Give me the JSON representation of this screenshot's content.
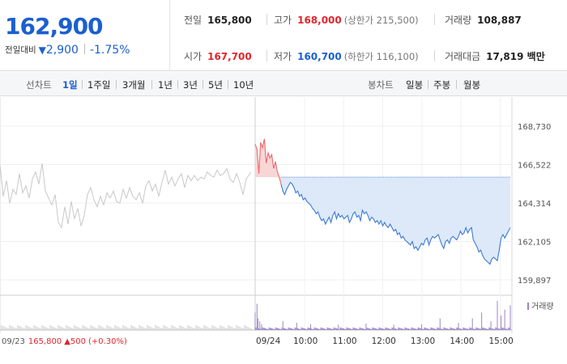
{
  "quote": {
    "price": "162,900",
    "change_label": "전일대비",
    "change_arrow": "▼",
    "change_amount": "2,900",
    "change_pct": "-1.75%",
    "prev_close_label": "전일",
    "prev_close": "165,800",
    "high_label": "고가",
    "high": "168,000",
    "upper_limit": "(상한가 215,500)",
    "volume_label": "거래량",
    "volume": "108,887",
    "open_label": "시가",
    "open": "167,700",
    "low_label": "저가",
    "low": "160,700",
    "lower_limit": "(하한가 116,100)",
    "turnover_label": "거래대금",
    "turnover": "17,819 백만"
  },
  "toolbar": {
    "line_label": "선차트",
    "line_ranges": [
      "1일",
      "1주일",
      "3개월",
      "1년",
      "3년",
      "5년",
      "10년"
    ],
    "active_range": "1일",
    "candle_label": "봉차트",
    "candle_ranges": [
      "일봉",
      "주봉",
      "월봉"
    ]
  },
  "colors": {
    "up": "#e0262c",
    "down": "#1b5fd0",
    "prev_day_line": "#c8c8c8",
    "fill_down": "#dde9f8",
    "fill_up": "#f9d6d6",
    "volume_bar": "#9b86c6"
  },
  "chart_data": {
    "type": "line",
    "y_ticks": [
      "168,730",
      "166,522",
      "164,314",
      "162,105",
      "159,897"
    ],
    "ylim": [
      159897,
      168730
    ],
    "reference_price": 165800,
    "x_labels": [
      "09/24",
      "10:00",
      "11:00",
      "12:00",
      "13:00",
      "14:00",
      "15:00"
    ],
    "volume_legend": "거래량",
    "prev_day_note": {
      "date": "09/23",
      "close": "165,800",
      "arrow": "▲",
      "change": "500",
      "pct": "(+0.30%)"
    },
    "prev_day_series": [
      [
        0,
        166500
      ],
      [
        4,
        164700
      ],
      [
        8,
        165600
      ],
      [
        12,
        164300
      ],
      [
        16,
        165100
      ],
      [
        20,
        164800
      ],
      [
        24,
        166000
      ],
      [
        28,
        164900
      ],
      [
        32,
        165300
      ],
      [
        36,
        164600
      ],
      [
        40,
        165700
      ],
      [
        44,
        166100
      ],
      [
        48,
        165400
      ],
      [
        52,
        166600
      ],
      [
        56,
        165000
      ],
      [
        60,
        164600
      ],
      [
        64,
        164200
      ],
      [
        68,
        164800
      ],
      [
        72,
        163200
      ],
      [
        76,
        162900
      ],
      [
        80,
        164100
      ],
      [
        84,
        163100
      ],
      [
        88,
        164400
      ],
      [
        92,
        163400
      ],
      [
        96,
        164000
      ],
      [
        100,
        163000
      ],
      [
        104,
        163600
      ],
      [
        108,
        164800
      ],
      [
        112,
        165200
      ],
      [
        116,
        164500
      ],
      [
        120,
        164100
      ],
      [
        124,
        164700
      ],
      [
        128,
        164200
      ],
      [
        132,
        164900
      ],
      [
        136,
        164600
      ],
      [
        140,
        165000
      ],
      [
        144,
        164400
      ],
      [
        148,
        164300
      ],
      [
        152,
        165100
      ],
      [
        156,
        164600
      ],
      [
        160,
        165200
      ],
      [
        164,
        164700
      ],
      [
        168,
        164500
      ],
      [
        172,
        164900
      ],
      [
        176,
        164300
      ],
      [
        180,
        165300
      ],
      [
        184,
        165600
      ],
      [
        188,
        165000
      ],
      [
        192,
        165400
      ],
      [
        196,
        164700
      ],
      [
        200,
        165500
      ],
      [
        204,
        166200
      ],
      [
        208,
        165400
      ],
      [
        212,
        165800
      ],
      [
        216,
        165300
      ],
      [
        220,
        165700
      ],
      [
        224,
        166000
      ],
      [
        228,
        165200
      ],
      [
        232,
        165900
      ],
      [
        236,
        165600
      ],
      [
        240,
        165900
      ],
      [
        244,
        165600
      ],
      [
        248,
        165800
      ],
      [
        252,
        165700
      ],
      [
        256,
        166100
      ],
      [
        260,
        165900
      ],
      [
        264,
        165800
      ],
      [
        268,
        166200
      ],
      [
        272,
        165900
      ],
      [
        276,
        166000
      ],
      [
        280,
        166300
      ],
      [
        284,
        165700
      ],
      [
        288,
        165500
      ],
      [
        292,
        166000
      ],
      [
        296,
        165500
      ],
      [
        300,
        164800
      ],
      [
        304,
        165700
      ],
      [
        310,
        166100
      ]
    ],
    "today_series": [
      [
        0,
        167700
      ],
      [
        2,
        167400
      ],
      [
        4,
        166000
      ],
      [
        6,
        167800
      ],
      [
        8,
        167500
      ],
      [
        10,
        168000
      ],
      [
        12,
        166600
      ],
      [
        14,
        167200
      ],
      [
        16,
        166900
      ],
      [
        18,
        167100
      ],
      [
        20,
        166300
      ],
      [
        22,
        166700
      ],
      [
        24,
        166100
      ],
      [
        26,
        165800
      ],
      [
        28,
        165400
      ],
      [
        30,
        165000
      ],
      [
        32,
        164800
      ],
      [
        34,
        165100
      ],
      [
        36,
        165300
      ],
      [
        38,
        165500
      ],
      [
        40,
        165400
      ],
      [
        42,
        165200
      ],
      [
        44,
        164900
      ],
      [
        46,
        165000
      ],
      [
        48,
        164700
      ],
      [
        50,
        164800
      ],
      [
        52,
        164500
      ],
      [
        54,
        164600
      ],
      [
        56,
        164400
      ],
      [
        58,
        164300
      ],
      [
        60,
        164200
      ],
      [
        62,
        164000
      ],
      [
        64,
        163900
      ],
      [
        66,
        163700
      ],
      [
        68,
        163800
      ],
      [
        70,
        163500
      ],
      [
        72,
        163300
      ],
      [
        74,
        163400
      ],
      [
        76,
        163100
      ],
      [
        78,
        163300
      ],
      [
        80,
        163500
      ],
      [
        82,
        163200
      ],
      [
        84,
        163600
      ],
      [
        86,
        163800
      ],
      [
        88,
        163400
      ],
      [
        90,
        163700
      ],
      [
        92,
        163500
      ],
      [
        94,
        163600
      ],
      [
        96,
        163400
      ],
      [
        98,
        163500
      ],
      [
        100,
        163600
      ],
      [
        102,
        163200
      ],
      [
        104,
        163400
      ],
      [
        106,
        163700
      ],
      [
        108,
        163800
      ],
      [
        110,
        163500
      ],
      [
        112,
        163600
      ],
      [
        114,
        163300
      ],
      [
        116,
        163900
      ],
      [
        118,
        163700
      ],
      [
        120,
        163800
      ],
      [
        122,
        163600
      ],
      [
        124,
        163300
      ],
      [
        126,
        163500
      ],
      [
        128,
        163400
      ],
      [
        130,
        163200
      ],
      [
        132,
        163300
      ],
      [
        134,
        163100
      ],
      [
        136,
        163300
      ],
      [
        138,
        163000
      ],
      [
        140,
        163200
      ],
      [
        142,
        163000
      ],
      [
        144,
        162900
      ],
      [
        146,
        163100
      ],
      [
        148,
        162900
      ],
      [
        150,
        162700
      ],
      [
        152,
        162800
      ],
      [
        154,
        162500
      ],
      [
        156,
        162600
      ],
      [
        158,
        162300
      ],
      [
        160,
        162400
      ],
      [
        162,
        162200
      ],
      [
        164,
        162100
      ],
      [
        166,
        162000
      ],
      [
        168,
        161900
      ],
      [
        170,
        162100
      ],
      [
        172,
        161700
      ],
      [
        174,
        161800
      ],
      [
        176,
        161600
      ],
      [
        178,
        161800
      ],
      [
        180,
        162000
      ],
      [
        182,
        161900
      ],
      [
        184,
        162200
      ],
      [
        186,
        162300
      ],
      [
        188,
        161900
      ],
      [
        190,
        162200
      ],
      [
        192,
        162400
      ],
      [
        194,
        162300
      ],
      [
        196,
        162400
      ],
      [
        198,
        162500
      ],
      [
        200,
        162200
      ],
      [
        202,
        161900
      ],
      [
        204,
        161700
      ],
      [
        206,
        162100
      ],
      [
        208,
        162200
      ],
      [
        210,
        162000
      ],
      [
        212,
        162300
      ],
      [
        214,
        162400
      ],
      [
        216,
        162300
      ],
      [
        218,
        162200
      ],
      [
        220,
        162400
      ],
      [
        222,
        162700
      ],
      [
        224,
        162500
      ],
      [
        226,
        162600
      ],
      [
        228,
        162900
      ],
      [
        230,
        162600
      ],
      [
        232,
        162800
      ],
      [
        234,
        162900
      ],
      [
        236,
        162200
      ],
      [
        238,
        162000
      ],
      [
        240,
        161800
      ],
      [
        242,
        161500
      ],
      [
        244,
        161600
      ],
      [
        246,
        161300
      ],
      [
        248,
        161100
      ],
      [
        250,
        161000
      ],
      [
        252,
        160900
      ],
      [
        254,
        160800
      ],
      [
        256,
        161100
      ],
      [
        258,
        161200
      ],
      [
        260,
        161100
      ],
      [
        262,
        161000
      ],
      [
        264,
        161600
      ],
      [
        266,
        162300
      ],
      [
        268,
        162500
      ],
      [
        270,
        162300
      ],
      [
        272,
        162500
      ],
      [
        276,
        162900
      ]
    ],
    "volume_spikes": [
      [
        0,
        60
      ],
      [
        2,
        90
      ],
      [
        3,
        40
      ],
      [
        5,
        30
      ],
      [
        7,
        20
      ],
      [
        30,
        30
      ],
      [
        45,
        25
      ],
      [
        60,
        20
      ],
      [
        90,
        18
      ],
      [
        120,
        22
      ],
      [
        150,
        18
      ],
      [
        180,
        20
      ],
      [
        200,
        40
      ],
      [
        220,
        25
      ],
      [
        235,
        40
      ],
      [
        245,
        60
      ],
      [
        255,
        30
      ],
      [
        262,
        100
      ],
      [
        266,
        50
      ],
      [
        270,
        70
      ],
      [
        276,
        85
      ]
    ]
  }
}
